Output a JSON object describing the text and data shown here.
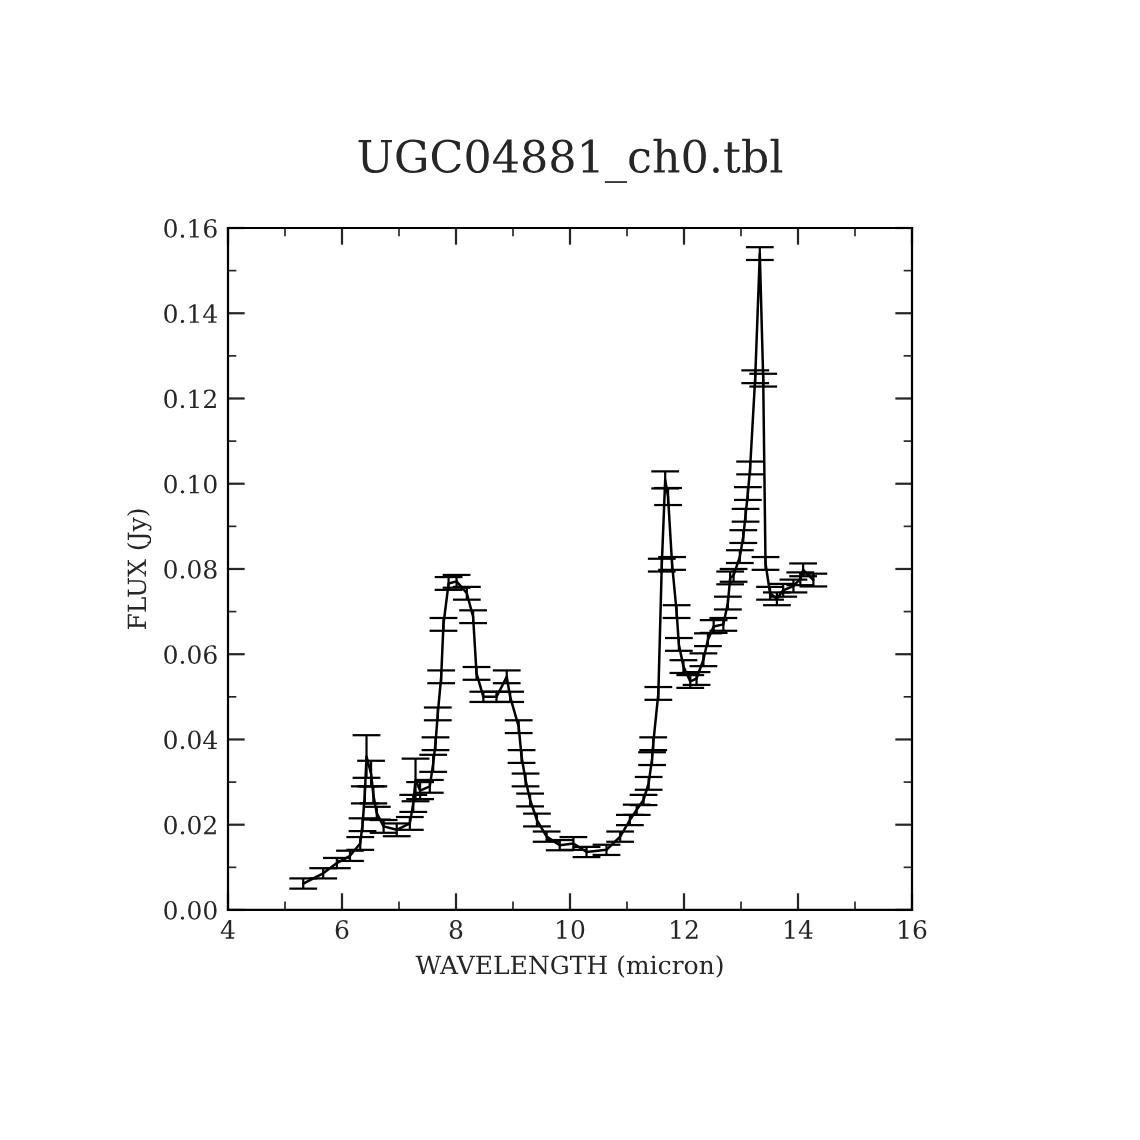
{
  "chart_data": {
    "type": "line",
    "title": "UGC04881_ch0.tbl",
    "xlabel": "WAVELENGTH (micron)",
    "ylabel": "FLUX (Jy)",
    "xlim": [
      4,
      16
    ],
    "xticks": [
      4,
      6,
      8,
      10,
      12,
      14,
      16
    ],
    "ylim": [
      0,
      0.16
    ],
    "yticks": [
      {
        "value": 0,
        "label": "0.00"
      },
      {
        "value": 0.02,
        "label": "0.02"
      },
      {
        "value": 0.04,
        "label": "0.04"
      },
      {
        "value": 0.06,
        "label": "0.06"
      },
      {
        "value": 0.08,
        "label": "0.08"
      },
      {
        "value": 0.1,
        "label": "0.10"
      },
      {
        "value": 0.12,
        "label": "0.12"
      },
      {
        "value": 0.14,
        "label": "0.14"
      },
      {
        "value": 0.16,
        "label": "0.16"
      }
    ],
    "grid": false,
    "legend": false,
    "marker": "none",
    "line_style": "solid",
    "series": [
      {
        "color": "#000000",
        "x": [
          5.32,
          5.67,
          5.91,
          6.14,
          6.32,
          6.36,
          6.4,
          6.43,
          6.51,
          6.55,
          6.61,
          6.73,
          6.96,
          7.19,
          7.25,
          7.29,
          7.37,
          7.54,
          7.6,
          7.64,
          7.68,
          7.74,
          7.78,
          7.87,
          8.01,
          8.19,
          8.3,
          8.36,
          8.48,
          8.71,
          8.89,
          8.95,
          9.1,
          9.15,
          9.22,
          9.3,
          9.42,
          9.59,
          9.82,
          10.06,
          10.29,
          10.64,
          10.88,
          11.05,
          11.17,
          11.29,
          11.38,
          11.44,
          11.46,
          11.55,
          11.61,
          11.67,
          11.72,
          11.79,
          11.87,
          11.91,
          11.99,
          12.11,
          12.22,
          12.34,
          12.42,
          12.52,
          12.69,
          12.77,
          12.81,
          12.87,
          12.98,
          13.04,
          13.08,
          13.12,
          13.16,
          13.25,
          13.33,
          13.39,
          13.43,
          13.51,
          13.63,
          13.74,
          13.92,
          14.04,
          14.09,
          14.27
        ],
        "values": [
          0.0062,
          0.0086,
          0.011,
          0.0127,
          0.0156,
          0.02,
          0.027,
          0.036,
          0.032,
          0.027,
          0.0227,
          0.0196,
          0.0188,
          0.0203,
          0.025,
          0.0305,
          0.028,
          0.029,
          0.0344,
          0.039,
          0.046,
          0.0547,
          0.067,
          0.0766,
          0.0771,
          0.0743,
          0.0688,
          0.0555,
          0.05,
          0.05,
          0.0547,
          0.05,
          0.043,
          0.036,
          0.0305,
          0.0258,
          0.0211,
          0.0172,
          0.0152,
          0.0156,
          0.0136,
          0.0141,
          0.0172,
          0.0211,
          0.0235,
          0.0258,
          0.0297,
          0.0355,
          0.039,
          0.0508,
          0.0809,
          0.1009,
          0.097,
          0.0813,
          0.07,
          0.0623,
          0.0571,
          0.0536,
          0.0543,
          0.0587,
          0.0634,
          0.0665,
          0.067,
          0.072,
          0.0779,
          0.0785,
          0.0829,
          0.0876,
          0.0926,
          0.0977,
          0.1037,
          0.1251,
          0.154,
          0.1243,
          0.0813,
          0.0743,
          0.073,
          0.075,
          0.076,
          0.0777,
          0.0798,
          0.0774
        ],
        "errors": [
          0.0012,
          0.0012,
          0.0012,
          0.0012,
          0.0015,
          0.0015,
          0.002,
          0.005,
          0.003,
          0.002,
          0.0015,
          0.0015,
          0.0015,
          0.0015,
          0.002,
          0.005,
          0.002,
          0.0015,
          0.002,
          0.0015,
          0.0015,
          0.0015,
          0.0015,
          0.0015,
          0.0015,
          0.0015,
          0.0015,
          0.0015,
          0.0012,
          0.0012,
          0.0015,
          0.0012,
          0.0015,
          0.0015,
          0.0015,
          0.0015,
          0.0015,
          0.0012,
          0.0012,
          0.0015,
          0.0012,
          0.0012,
          0.0012,
          0.0012,
          0.0012,
          0.0012,
          0.0015,
          0.0015,
          0.0015,
          0.0015,
          0.0015,
          0.002,
          0.002,
          0.0015,
          0.0015,
          0.0015,
          0.0015,
          0.0015,
          0.0015,
          0.0015,
          0.0015,
          0.0015,
          0.0015,
          0.0015,
          0.0015,
          0.0015,
          0.0015,
          0.0015,
          0.0015,
          0.0015,
          0.0015,
          0.0015,
          0.0015,
          0.0015,
          0.0015,
          0.0015,
          0.0015,
          0.0015,
          0.0015,
          0.0015,
          0.0015,
          0.0015
        ]
      }
    ]
  }
}
